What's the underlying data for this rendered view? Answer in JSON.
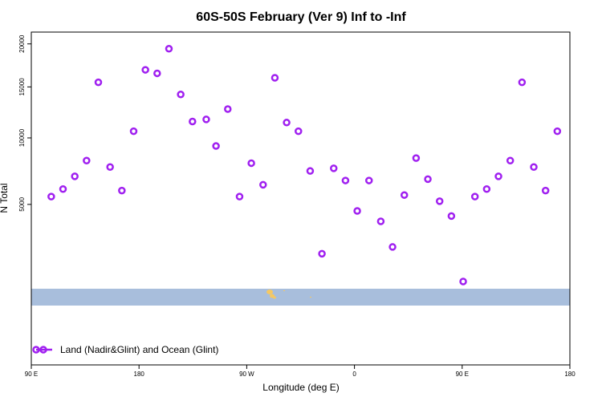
{
  "chart_data": {
    "type": "scatter",
    "title": "60S-50S February (Ver 9)   Inf to -Inf",
    "xlabel": "Longitude (deg E)",
    "ylabel": "N Total",
    "xlim": [
      -90,
      180
    ],
    "ylim": [
      0,
      21500
    ],
    "y_scale": "sqrt",
    "x_ticks": [
      {
        "value": -90,
        "label": "90 E"
      },
      {
        "value": -36,
        "label": "180"
      },
      {
        "value": 18,
        "label": "90 W"
      },
      {
        "value": 72,
        "label": "0"
      },
      {
        "value": 126,
        "label": "90 E"
      },
      {
        "value": 180,
        "label": "180"
      }
    ],
    "y_ticks": [
      {
        "value": 5000,
        "label": "5000"
      },
      {
        "value": 10000,
        "label": "10000"
      },
      {
        "value": 15000,
        "label": "15000"
      },
      {
        "value": 20000,
        "label": "20000"
      }
    ],
    "grid": false,
    "legend_position": "bottom-left",
    "series": [
      {
        "name": "Land (Nadir&Glint) and Ocean (Glint)",
        "color": "#a020f0",
        "marker": "open-circle",
        "points": [
          {
            "x": -80,
            "y": 5500
          },
          {
            "x": -74.1,
            "y": 6000
          },
          {
            "x": -68.2,
            "y": 6900
          },
          {
            "x": -62.3,
            "y": 8100
          },
          {
            "x": -56.4,
            "y": 15500
          },
          {
            "x": -50.5,
            "y": 7600
          },
          {
            "x": -44.6,
            "y": 5900
          },
          {
            "x": -38.7,
            "y": 10600
          },
          {
            "x": -32.8,
            "y": 16900
          },
          {
            "x": -26.9,
            "y": 16500
          },
          {
            "x": -21,
            "y": 19400
          },
          {
            "x": -15.1,
            "y": 14200
          },
          {
            "x": -9.2,
            "y": 11500
          },
          {
            "x": -2.3,
            "y": 11700
          },
          {
            "x": 2.6,
            "y": 9300
          },
          {
            "x": 8.5,
            "y": 12700
          },
          {
            "x": 14.4,
            "y": 5500
          },
          {
            "x": 20.3,
            "y": 7900
          },
          {
            "x": 26.2,
            "y": 6300
          },
          {
            "x": 32.1,
            "y": 16000
          },
          {
            "x": 38,
            "y": 11400
          },
          {
            "x": 43.9,
            "y": 10600
          },
          {
            "x": 49.8,
            "y": 7300
          },
          {
            "x": 55.7,
            "y": 2400
          },
          {
            "x": 61.6,
            "y": 7500
          },
          {
            "x": 67.5,
            "y": 6600
          },
          {
            "x": 73.4,
            "y": 4600
          },
          {
            "x": 79.3,
            "y": 6600
          },
          {
            "x": 85.2,
            "y": 4000
          },
          {
            "x": 91.1,
            "y": 2700
          },
          {
            "x": 97,
            "y": 5600
          },
          {
            "x": 102.9,
            "y": 8300
          },
          {
            "x": 108.8,
            "y": 6700
          },
          {
            "x": 114.7,
            "y": 5200
          },
          {
            "x": 120.6,
            "y": 4300
          },
          {
            "x": 126.5,
            "y": 1350
          },
          {
            "x": 132.4,
            "y": 5500
          },
          {
            "x": 138.3,
            "y": 6000
          },
          {
            "x": 144.2,
            "y": 6900
          },
          {
            "x": 150.1,
            "y": 8100
          },
          {
            "x": 156,
            "y": 15500
          },
          {
            "x": 161.9,
            "y": 7600
          },
          {
            "x": 167.8,
            "y": 5900
          },
          {
            "x": 173.7,
            "y": 10600
          }
        ]
      }
    ]
  }
}
